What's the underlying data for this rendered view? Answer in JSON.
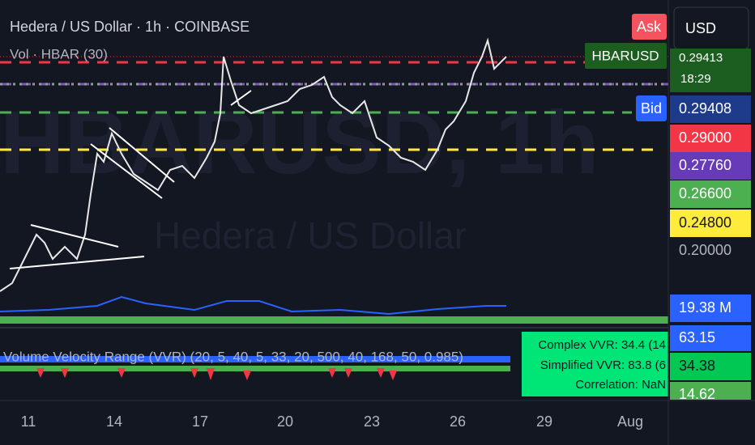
{
  "header": {
    "title": "Hedera / US Dollar · 1h · COINBASE",
    "volume_indicator": "Vol · HBAR (30)"
  },
  "watermark": {
    "symbol": "HBARUSD, 1h",
    "name": "Hedera / US Dollar"
  },
  "buttons": {
    "ask": "Ask",
    "currency": "USD",
    "bid": "Bid",
    "symbol": "HBARUSD"
  },
  "price_labels": {
    "last": "0.29413",
    "countdown": "18:29",
    "bid": "0.29408",
    "red": "0.29000",
    "purple": "0.27760",
    "green": "0.26600",
    "yellow": "0.24800",
    "grey": "0.20000",
    "volume": "19.38 M"
  },
  "indicator": {
    "name": "Volume Velocity Range (VVR) (20, 5, 40, 5, 33, 20, 500, 40, 168, 50, 0.985)",
    "complex": "Complex VVR: 34.4 (14",
    "simplified": "Simplified VVR: 83.8 (6",
    "correlation": "Correlation: NaN",
    "labels": [
      "63.15",
      "34.38",
      "14.62"
    ]
  },
  "time_axis": [
    "11",
    "14",
    "17",
    "20",
    "23",
    "26",
    "29",
    "Aug"
  ]
}
